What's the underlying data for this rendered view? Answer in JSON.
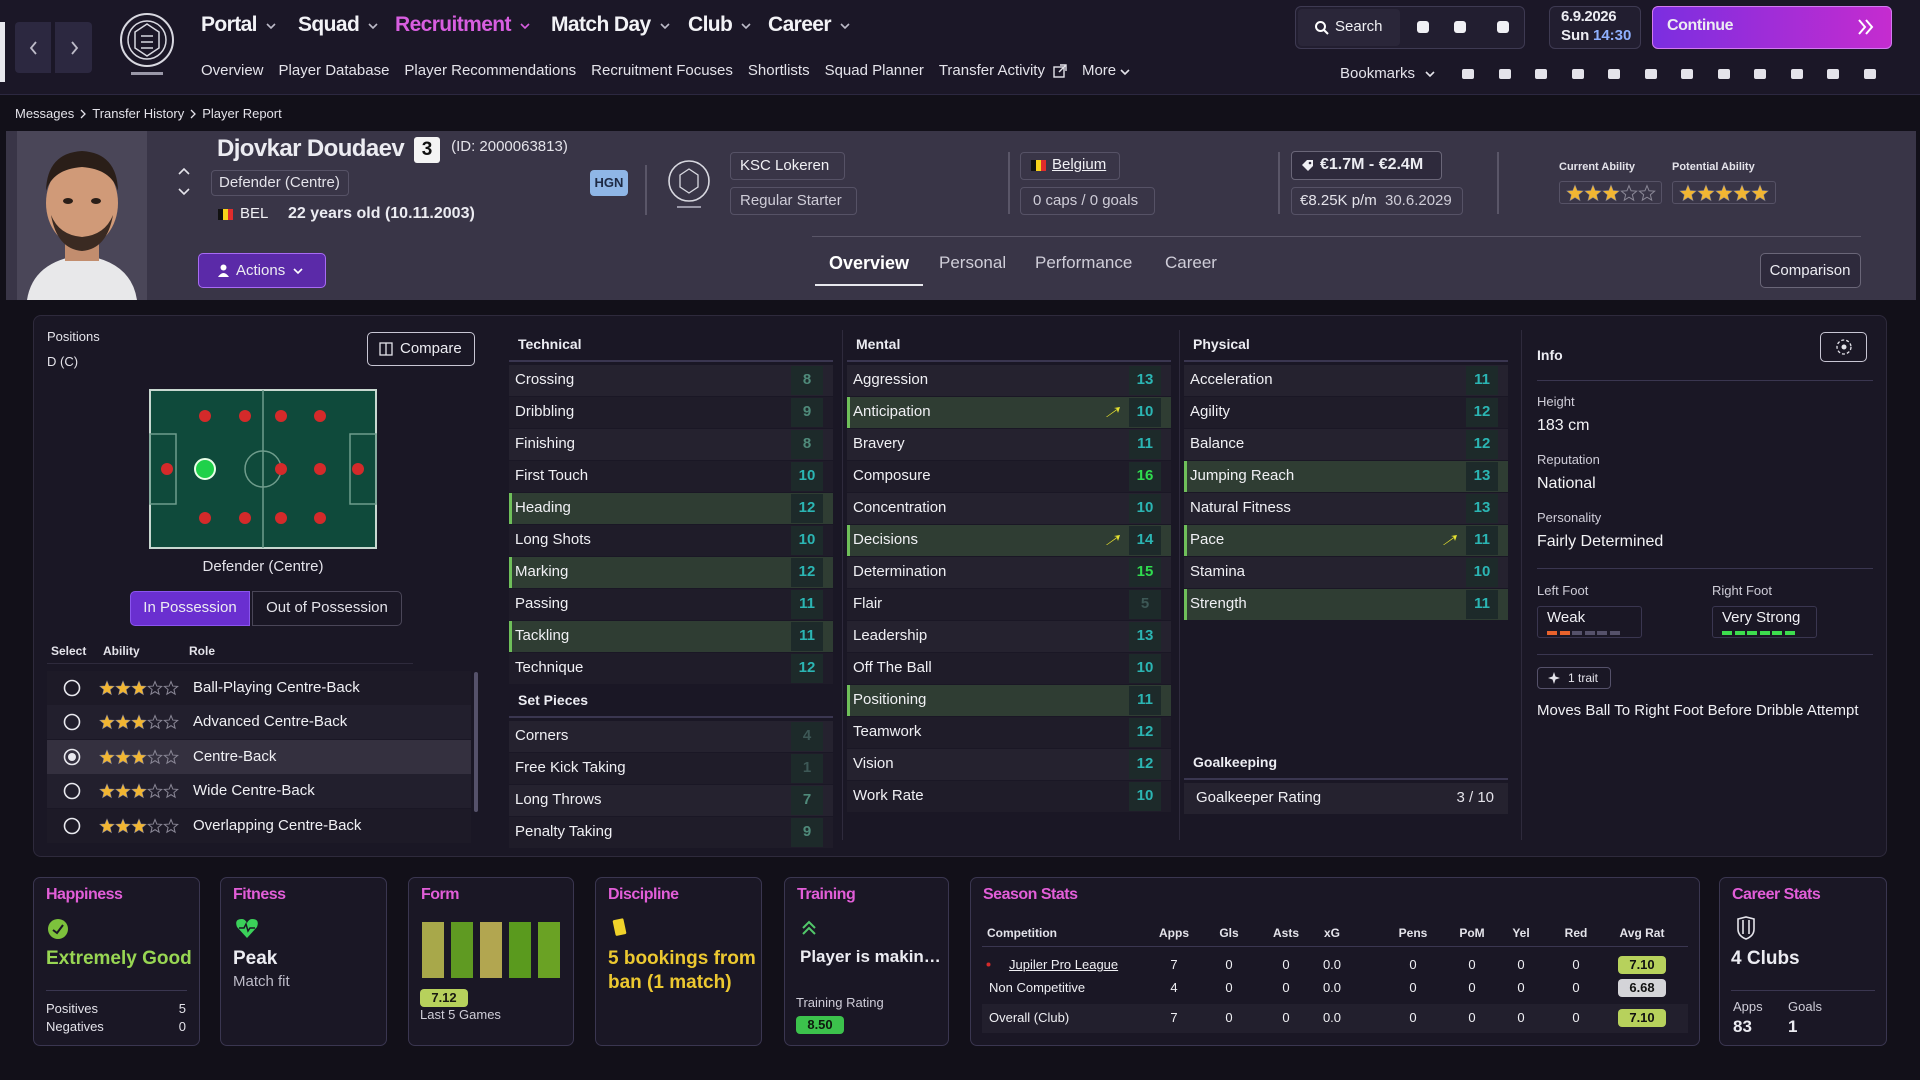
{
  "nav": {
    "menus": [
      "Portal",
      "Squad",
      "Recruitment",
      "Match Day",
      "Club",
      "Career"
    ],
    "active_menu": 2,
    "submenu": [
      "Overview",
      "Player Database",
      "Player Recommendations",
      "Recruitment Focuses",
      "Shortlists",
      "Squad Planner",
      "Transfer Activity",
      "More"
    ],
    "search": "Search",
    "date": "6.9.2026",
    "day": "Sun",
    "time": "14:30",
    "continue": "Continue",
    "bookmarks": "Bookmarks"
  },
  "breadcrumb": [
    "Messages",
    "Transfer History",
    "Player Report"
  ],
  "player": {
    "name": "Djovkar Doudaev",
    "number": 3,
    "id": "(ID: 2000063813)",
    "position": "Defender (Centre)",
    "nationality": "BEL",
    "age": "22 years old (10.11.2003)",
    "tag": "HGN",
    "club": "KSC Lokeren",
    "squad_status": "Regular Starter",
    "country": "Belgium",
    "caps": "0 caps / 0 goals",
    "value": "€1.7M - €2.4M",
    "wage": "€8.25K p/m",
    "contract": "30.6.2029",
    "current_ability": {
      "label": "Current Ability",
      "stars": 3
    },
    "potential_ability": {
      "label": "Potential Ability",
      "stars": 4.5
    }
  },
  "actions": "Actions",
  "tabs": [
    "Overview",
    "Personal",
    "Performance",
    "Career"
  ],
  "active_tab": 0,
  "comparison": "Comparison",
  "positions": {
    "title": "Positions",
    "value": "D (C)",
    "compare": "Compare",
    "caption": "Defender (Centre)",
    "toggle": [
      "In Possession",
      "Out of Possession"
    ],
    "active_toggle": 0,
    "headers": [
      "Select",
      "Ability",
      "Role"
    ],
    "roles": [
      {
        "name": "Ball-Playing Centre-Back",
        "stars": 3
      },
      {
        "name": "Advanced Centre-Back",
        "stars": 3
      },
      {
        "name": "Centre-Back",
        "stars": 2.5
      },
      {
        "name": "Wide Centre-Back",
        "stars": 2.5
      },
      {
        "name": "Overlapping Centre-Back",
        "stars": 2.5
      }
    ],
    "selected": 2
  },
  "attributes": {
    "columns": [
      [
        {
          "title": "Technical",
          "items": [
            {
              "name": "Crossing",
              "value": 8
            },
            {
              "name": "Dribbling",
              "value": 9
            },
            {
              "name": "Finishing",
              "value": 8
            },
            {
              "name": "First Touch",
              "value": 10
            },
            {
              "name": "Heading",
              "value": 12,
              "highlight": true
            },
            {
              "name": "Long Shots",
              "value": 10
            },
            {
              "name": "Marking",
              "value": 12,
              "highlight": true
            },
            {
              "name": "Passing",
              "value": 11
            },
            {
              "name": "Tackling",
              "value": 11,
              "highlight": true
            },
            {
              "name": "Technique",
              "value": 12
            }
          ]
        },
        {
          "title": "Set Pieces",
          "items": [
            {
              "name": "Corners",
              "value": 4
            },
            {
              "name": "Free Kick Taking",
              "value": 1
            },
            {
              "name": "Long Throws",
              "value": 7
            },
            {
              "name": "Penalty Taking",
              "value": 9
            }
          ]
        }
      ],
      [
        {
          "title": "Mental",
          "items": [
            {
              "name": "Aggression",
              "value": 13
            },
            {
              "name": "Anticipation",
              "value": 10,
              "highlight": true,
              "arrow": true
            },
            {
              "name": "Bravery",
              "value": 11
            },
            {
              "name": "Composure",
              "value": 16
            },
            {
              "name": "Concentration",
              "value": 10
            },
            {
              "name": "Decisions",
              "value": 14,
              "highlight": true,
              "arrow": true
            },
            {
              "name": "Determination",
              "value": 15
            },
            {
              "name": "Flair",
              "value": 5
            },
            {
              "name": "Leadership",
              "value": 13
            },
            {
              "name": "Off The Ball",
              "value": 10
            },
            {
              "name": "Positioning",
              "value": 11,
              "highlight": true
            },
            {
              "name": "Teamwork",
              "value": 12
            },
            {
              "name": "Vision",
              "value": 12
            },
            {
              "name": "Work Rate",
              "value": 10
            }
          ]
        }
      ],
      [
        {
          "title": "Physical",
          "items": [
            {
              "name": "Acceleration",
              "value": 11
            },
            {
              "name": "Agility",
              "value": 12
            },
            {
              "name": "Balance",
              "value": 12
            },
            {
              "name": "Jumping Reach",
              "value": 13,
              "highlight": true
            },
            {
              "name": "Natural Fitness",
              "value": 13
            },
            {
              "name": "Pace",
              "value": 11,
              "highlight": true,
              "arrow": true
            },
            {
              "name": "Stamina",
              "value": 10
            },
            {
              "name": "Strength",
              "value": 11,
              "highlight": true
            }
          ]
        },
        {
          "title": "Goalkeeping",
          "items": [
            {
              "name": "Goalkeeper Rating",
              "value": "3 / 10"
            }
          ]
        }
      ]
    ]
  },
  "info": {
    "title": "Info",
    "fields": [
      {
        "label": "Height",
        "value": "183 cm"
      },
      {
        "label": "Reputation",
        "value": "National"
      },
      {
        "label": "Personality",
        "value": "Fairly Determined"
      }
    ],
    "left_foot": {
      "label": "Left Foot",
      "value": "Weak",
      "level": 2
    },
    "right_foot": {
      "label": "Right Foot",
      "value": "Very Strong",
      "level": 6
    },
    "trait_count": "1 trait",
    "traits": [
      "Moves Ball To Right Foot Before Dribble Attempt"
    ]
  },
  "cards": {
    "happiness": {
      "title": "Happiness",
      "value": "Extremely Good",
      "positives_label": "Positives",
      "positives": 5,
      "negatives_label": "Negatives",
      "negatives": 0
    },
    "fitness": {
      "title": "Fitness",
      "value": "Peak",
      "detail": "Match fit"
    },
    "form": {
      "title": "Form",
      "rating": 7.12,
      "caption": "Last 5 Games"
    },
    "discipline": {
      "title": "Discipline",
      "text": "5 bookings from ban (1 match)"
    },
    "training": {
      "title": "Training",
      "text": "Player is makin…",
      "rating_label": "Training Rating",
      "rating": "8.50"
    },
    "season": {
      "title": "Season Stats",
      "headers": [
        "Competition",
        "Apps",
        "Gls",
        "Asts",
        "xG",
        "Pens",
        "PoM",
        "Yel",
        "Red",
        "Avg Rat"
      ],
      "rows": [
        [
          "Jupiler Pro League",
          "7",
          "0",
          "0",
          "0.0",
          "0",
          "0",
          "0",
          "0",
          "7.10"
        ],
        [
          "Non Competitive",
          "4",
          "0",
          "0",
          "0.0",
          "0",
          "0",
          "0",
          "0",
          "6.68"
        ],
        [
          "Overall (Club)",
          "7",
          "0",
          "0",
          "0.0",
          "0",
          "0",
          "0",
          "0",
          "7.10"
        ]
      ]
    },
    "career": {
      "title": "Career Stats",
      "clubs": "4 Clubs",
      "apps_label": "Apps",
      "apps": 83,
      "goals_label": "Goals",
      "goals": 1
    }
  }
}
